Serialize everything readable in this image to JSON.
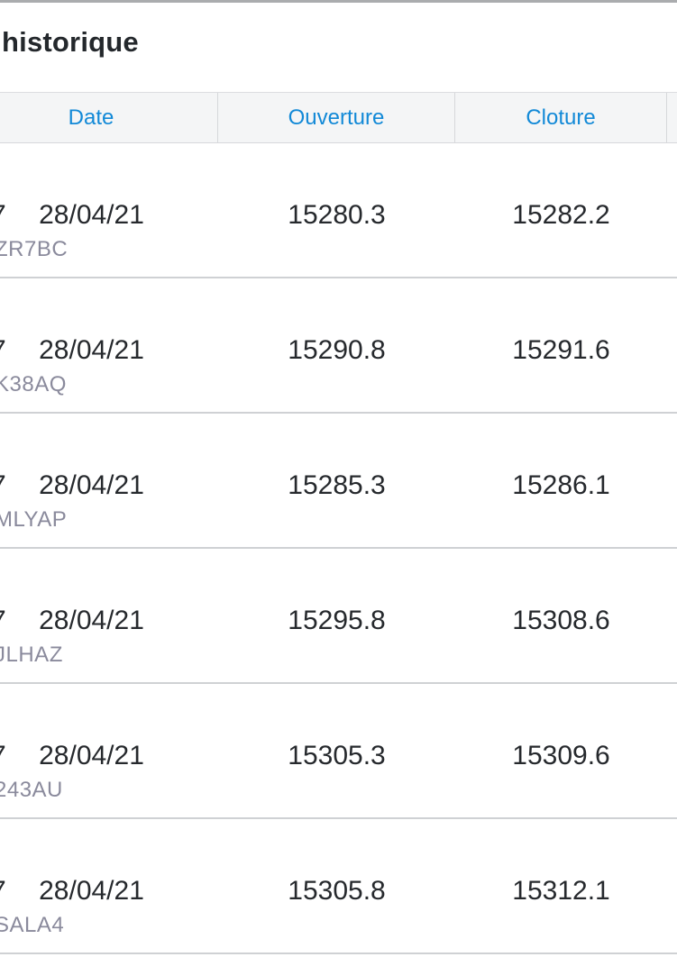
{
  "page": {
    "title": "historique"
  },
  "colors": {
    "header_text": "#1289d7",
    "header_background": "#f4f5f6",
    "value_text": "#26292d",
    "code_text": "#8a8a9c",
    "separator": "#cfd1d4",
    "top_line": "#aaacae"
  },
  "artifacts": {
    "row_edge_glyph": "7"
  },
  "table": {
    "columns": [
      {
        "label": "Date"
      },
      {
        "label": "Ouverture"
      },
      {
        "label": "Cloture"
      },
      {
        "label": ""
      }
    ],
    "rows": [
      {
        "date": "28/04/21",
        "code": "ZR7BC",
        "ouverture": "15280.3",
        "cloture": "15282.2"
      },
      {
        "date": "28/04/21",
        "code": "K38AQ",
        "ouverture": "15290.8",
        "cloture": "15291.6"
      },
      {
        "date": "28/04/21",
        "code": "MLYAP",
        "ouverture": "15285.3",
        "cloture": "15286.1"
      },
      {
        "date": "28/04/21",
        "code": "JLHAZ",
        "ouverture": "15295.8",
        "cloture": "15308.6"
      },
      {
        "date": "28/04/21",
        "code": "243AU",
        "ouverture": "15305.3",
        "cloture": "15309.6"
      },
      {
        "date": "28/04/21",
        "code": "SALA4",
        "ouverture": "15305.8",
        "cloture": "15312.1"
      }
    ]
  }
}
